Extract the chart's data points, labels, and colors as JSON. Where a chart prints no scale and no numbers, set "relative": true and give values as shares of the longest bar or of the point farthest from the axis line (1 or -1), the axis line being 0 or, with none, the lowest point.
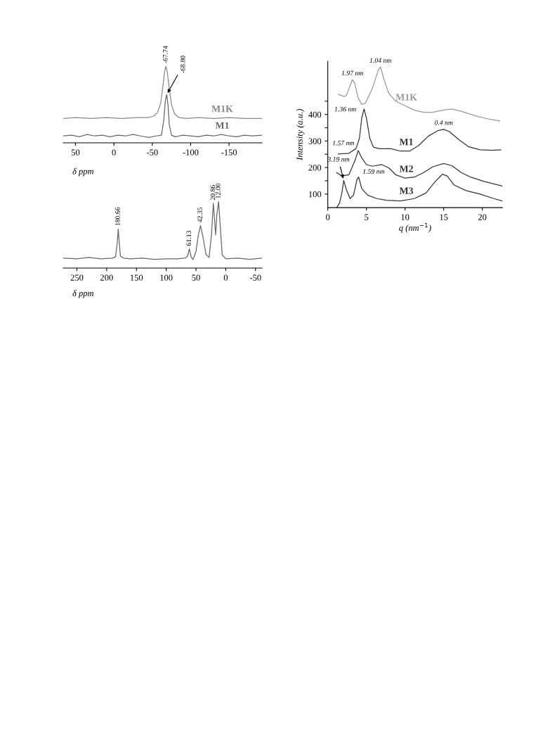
{
  "chart_data": [
    {
      "type": "line",
      "relative": true,
      "xlabel": "δ ppm",
      "xlim": [
        66,
        -193
      ],
      "xticks": [
        50,
        0,
        -50,
        -100,
        -150
      ],
      "series": [
        {
          "name": "M1K",
          "color": "#888888",
          "x": [
            66,
            50,
            30,
            10,
            -10,
            -30,
            -45,
            -52,
            -57,
            -61,
            -64,
            -66,
            -67.74,
            -69.5,
            -72,
            -75,
            -79,
            -85,
            -95,
            -110,
            -130,
            -150,
            -170,
            -193
          ],
          "values": [
            0.32,
            0.33,
            0.32,
            0.33,
            0.32,
            0.33,
            0.33,
            0.35,
            0.4,
            0.52,
            0.75,
            0.93,
            1.0,
            0.93,
            0.72,
            0.5,
            0.38,
            0.33,
            0.32,
            0.33,
            0.32,
            0.33,
            0.32,
            0.32
          ]
        },
        {
          "name": "M1",
          "color": "#666666",
          "x": [
            66,
            55,
            45,
            35,
            25,
            15,
            5,
            -5,
            -15,
            -25,
            -35,
            -45,
            -55,
            -62,
            -65,
            -67,
            -68.8,
            -70.5,
            -72,
            -75,
            -80,
            -90,
            -100,
            -110,
            -120,
            -130,
            -140,
            -150,
            -160,
            -170,
            -180,
            -193
          ],
          "values": [
            0.09,
            0.1,
            0.08,
            0.11,
            0.09,
            0.1,
            0.08,
            0.1,
            0.09,
            0.11,
            0.09,
            0.07,
            0.09,
            0.1,
            0.3,
            0.55,
            0.63,
            0.5,
            0.25,
            0.1,
            0.08,
            0.1,
            0.09,
            0.08,
            0.1,
            0.09,
            0.11,
            0.09,
            0.08,
            0.1,
            0.09,
            0.1
          ]
        }
      ],
      "annotations": [
        {
          "text": "-67.74",
          "x": -67.74,
          "y": 1.0
        },
        {
          "text": "-68.80",
          "x": -68.8,
          "y": 0.63
        }
      ]
    },
    {
      "type": "line",
      "relative": true,
      "xlabel": "δ ppm",
      "xlim": [
        273,
        -61
      ],
      "xticks": [
        250,
        200,
        150,
        100,
        50,
        0,
        -50
      ],
      "series": [
        {
          "color": "#666666",
          "x": [
            273,
            250,
            230,
            210,
            190,
            185,
            182,
            180.66,
            179,
            177,
            172,
            160,
            140,
            120,
            100,
            80,
            68,
            64,
            61.13,
            58,
            55,
            50,
            46,
            42.35,
            38,
            33,
            28,
            24,
            20.86,
            17,
            15,
            12,
            9,
            6,
            0,
            -20,
            -40,
            -61
          ],
          "values": [
            0.15,
            0.14,
            0.16,
            0.14,
            0.15,
            0.17,
            0.4,
            0.59,
            0.4,
            0.18,
            0.15,
            0.14,
            0.15,
            0.13,
            0.14,
            0.14,
            0.15,
            0.18,
            0.29,
            0.16,
            0.13,
            0.25,
            0.5,
            0.64,
            0.45,
            0.2,
            0.16,
            0.5,
            0.976,
            0.5,
            0.8,
            1.0,
            0.6,
            0.2,
            0.14,
            0.15,
            0.13,
            0.15
          ]
        }
      ],
      "annotations": [
        {
          "text": "180.66",
          "x": 180.66,
          "y": 0.59
        },
        {
          "text": "61.13",
          "x": 61.13,
          "y": 0.29
        },
        {
          "text": "42.35",
          "x": 42.35,
          "y": 0.64
        },
        {
          "text": "20.86",
          "x": 20.86,
          "y": 0.976
        },
        {
          "text": "12.00",
          "x": 12,
          "y": 1.0
        }
      ]
    },
    {
      "type": "line",
      "xlabel": "q (nm$^{−1}$)",
      "ylabel": "Intensity (a.u.)",
      "xlim": [
        0,
        22.6
      ],
      "xticks": [
        0,
        5,
        10,
        15,
        20
      ],
      "ylim": [
        49,
        600
      ],
      "yticks": [
        100,
        {
          "value": 150,
          "label": null
        },
        200,
        {
          "value": 250,
          "label": null
        },
        300,
        {
          "value": 350,
          "label": null
        },
        400,
        {
          "value": 450,
          "label": null
        }
      ],
      "series": [
        {
          "name": "M1K",
          "color": "#999999",
          "x": [
            1.36,
            2.12,
            2.42,
            3.18,
            3.48,
            3.94,
            4.39,
            4.85,
            5.76,
            6.52,
            6.82,
            7.27,
            7.88,
            8.79,
            10,
            11.2,
            12.4,
            13.6,
            14.85,
            16.06,
            17.27,
            19.1,
            20.9,
            22.27
          ],
          "values": [
            476,
            468,
            472,
            531,
            518,
            462,
            438,
            442,
            497,
            566,
            579,
            532,
            480,
            450,
            433,
            416,
            408,
            408,
            416,
            421,
            412,
            395,
            382,
            376
          ]
        },
        {
          "name": "M1",
          "color": "#333333",
          "x": [
            1.36,
            2.73,
            3.64,
            4.09,
            4.39,
            4.7,
            5,
            5.45,
            5.9,
            6.67,
            8.18,
            9.39,
            10.6,
            11.8,
            13,
            14.24,
            15,
            15.76,
            16.97,
            18.18,
            19.7,
            21.2,
            22.4
          ],
          "values": [
            251,
            254,
            271,
            309,
            386,
            421,
            386,
            309,
            277,
            271,
            271,
            262,
            262,
            284,
            318,
            339,
            344,
            335,
            305,
            279,
            267,
            265,
            267
          ]
        },
        {
          "name": "M2",
          "color": "#333333",
          "x": [
            1.15,
            1.82,
            2.73,
            3.48,
            3.94,
            4.39,
            5,
            5.76,
            6.97,
            7.88,
            8.79,
            10,
            11.2,
            12.4,
            13.6,
            15,
            16.06,
            17.27,
            18.48,
            20.3,
            22.6
          ],
          "values": [
            181,
            168,
            173,
            224,
            264,
            237,
            211,
            205,
            211,
            199,
            173,
            160,
            164,
            181,
            203,
            215,
            207,
            181,
            164,
            147,
            130
          ]
        },
        {
          "name": "M3",
          "color": "#333333",
          "x": [
            1.15,
            1.52,
            1.82,
            2.06,
            2.36,
            2.88,
            3.33,
            3.79,
            4,
            4.39,
            5.15,
            6.36,
            7.58,
            9.39,
            11.2,
            12.7,
            13.9,
            14.85,
            15.45,
            16.36,
            17.88,
            19.7,
            21.5,
            22.6
          ],
          "values": [
            49,
            66,
            104,
            151,
            121,
            83,
            96,
            156,
            164,
            121,
            96,
            83,
            77,
            74,
            83,
            104,
            147,
            175,
            168,
            134,
            113,
            100,
            83,
            74
          ]
        }
      ],
      "annotations": [
        {
          "text": "1.97 nm",
          "x": 3.18,
          "y": 531
        },
        {
          "text": "1.04 nm",
          "x": 6.82,
          "y": 579
        },
        {
          "text": "1.36 nm",
          "x": 4.7,
          "y": 421
        },
        {
          "text": "0.4 nm",
          "x": 15,
          "y": 344
        },
        {
          "text": "1.57 nm",
          "x": 3.94,
          "y": 264
        },
        {
          "text": "3.19 nm",
          "x": 2.06,
          "y": 151
        },
        {
          "text": "1.59 nm",
          "x": 4,
          "y": 164
        }
      ]
    }
  ]
}
